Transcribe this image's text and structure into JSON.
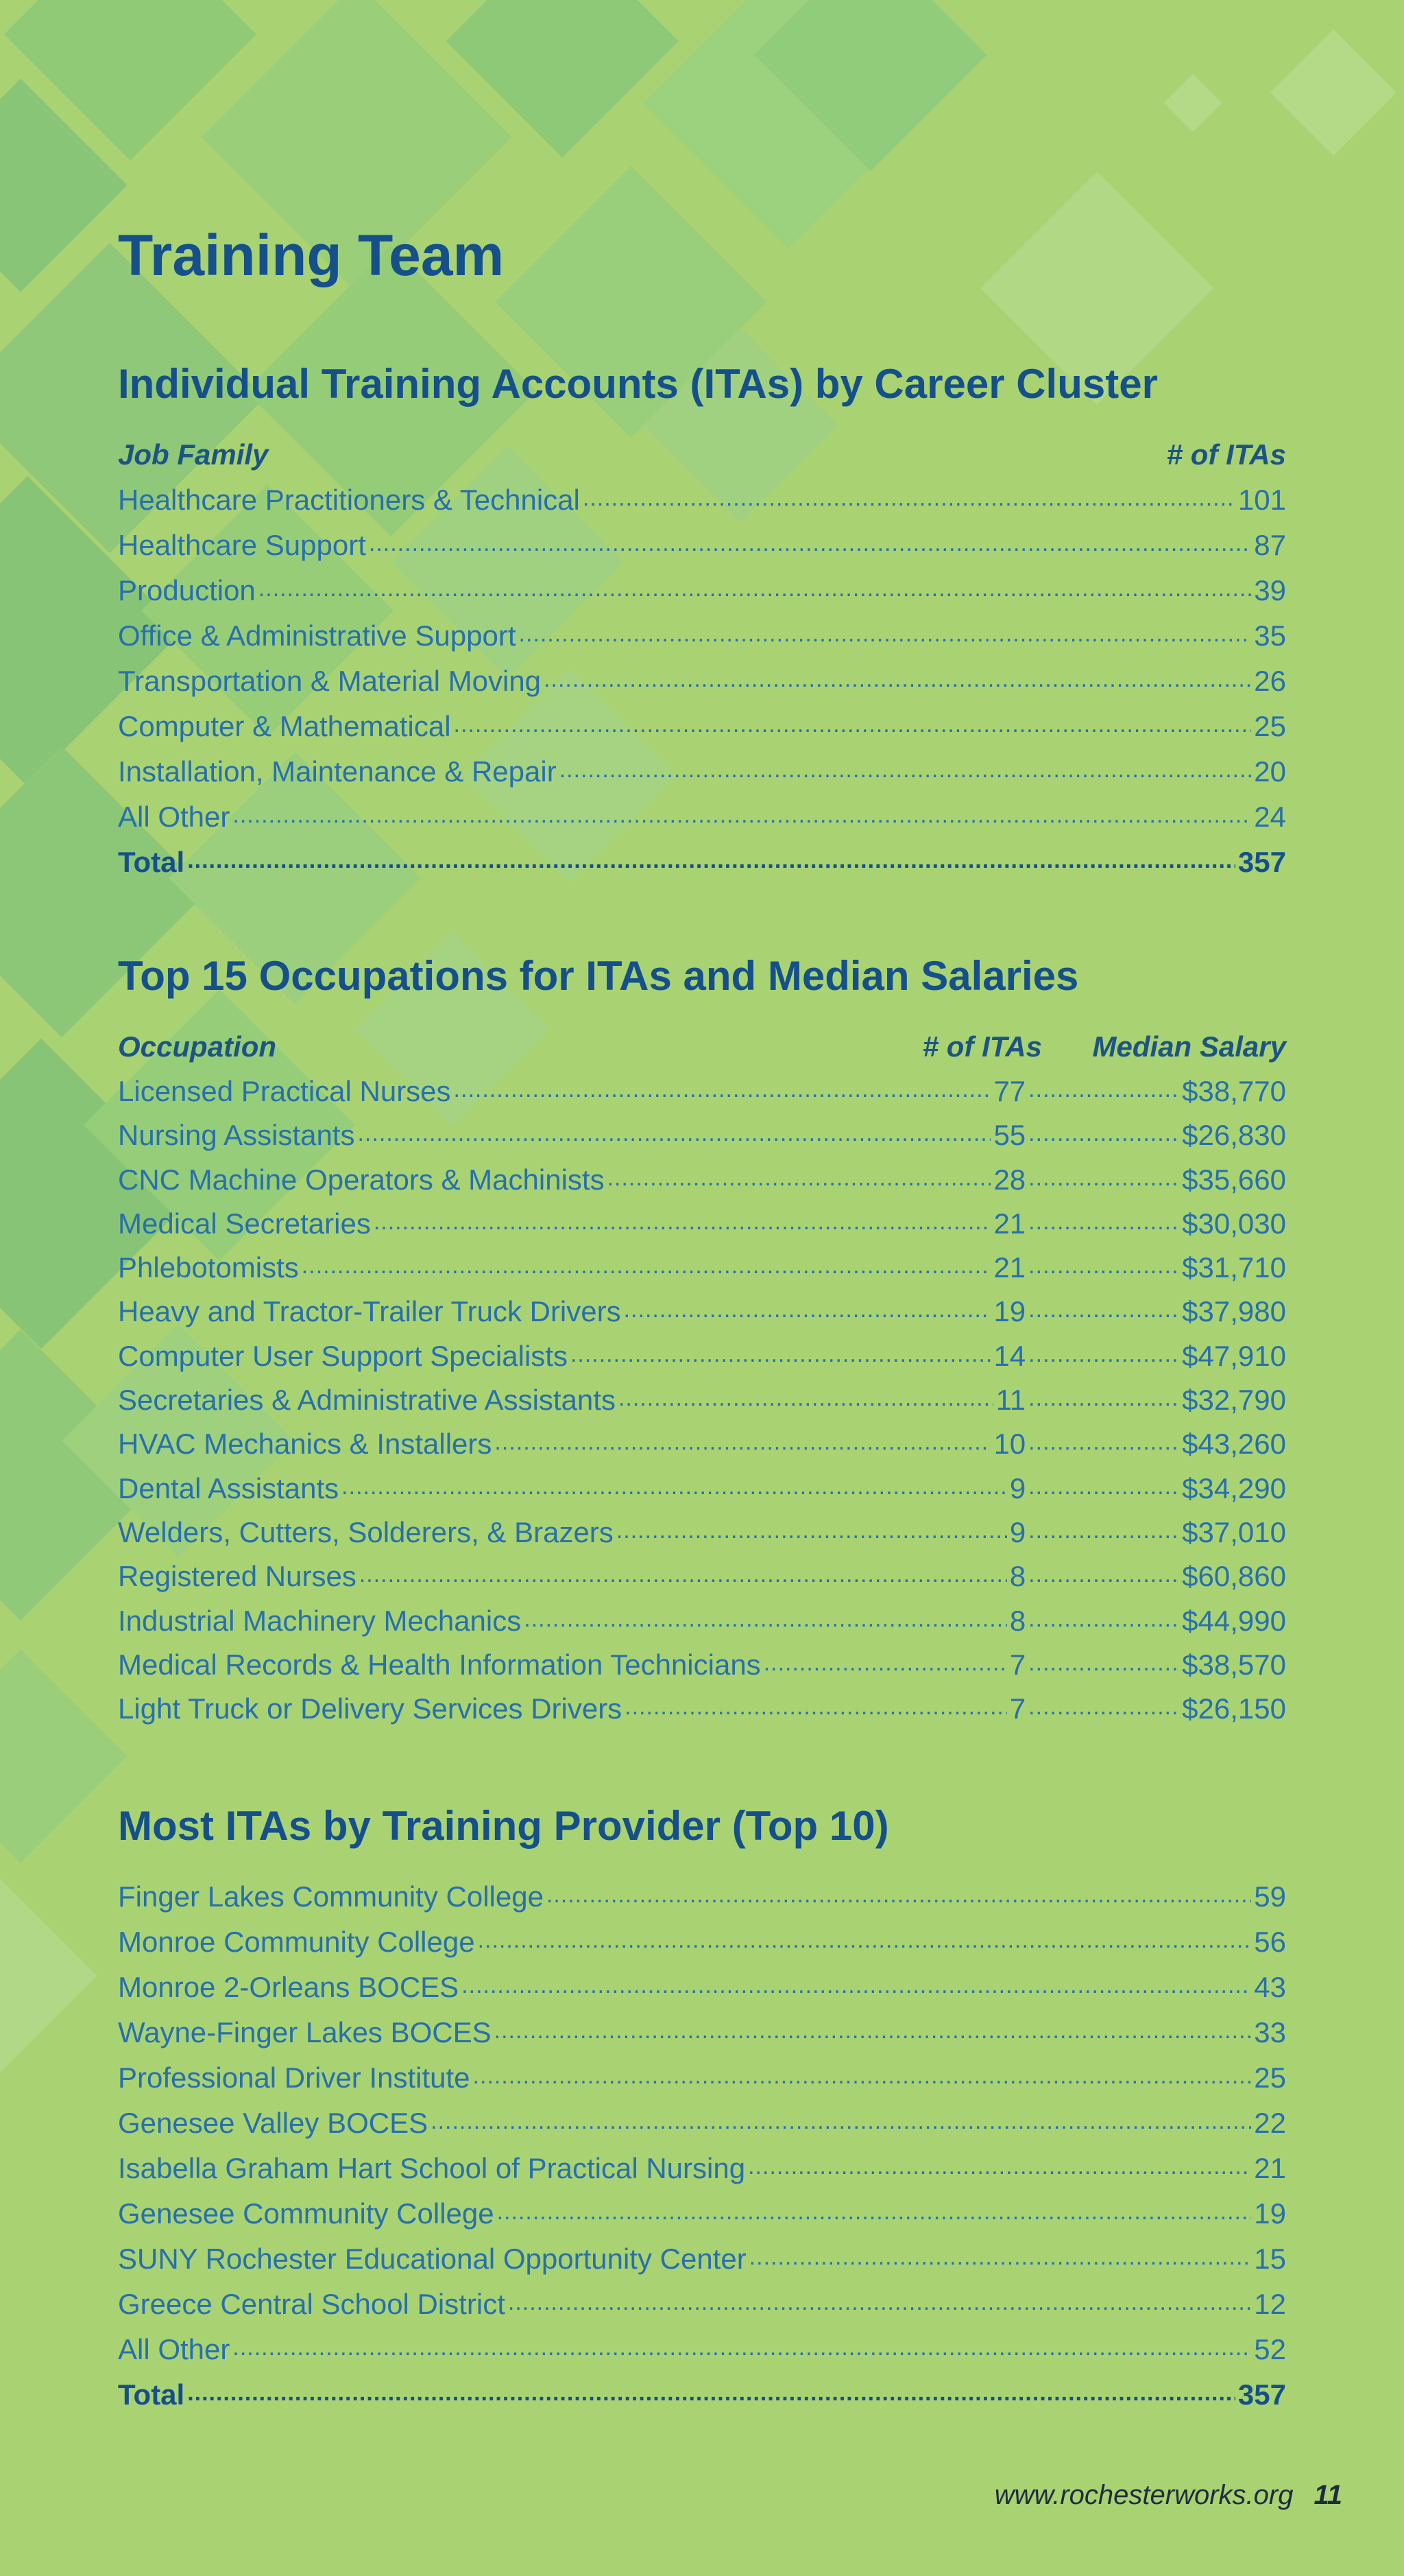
{
  "page_title": "Training Team",
  "career_cluster": {
    "title": "Individual Training Accounts (ITAs) by Career Cluster",
    "header_left": "Job Family",
    "header_right": "# of ITAs",
    "rows": [
      {
        "label": "Healthcare Practitioners & Technical",
        "value": "101"
      },
      {
        "label": "Healthcare Support",
        "value": "87"
      },
      {
        "label": "Production",
        "value": "39"
      },
      {
        "label": "Office & Administrative Support",
        "value": "35"
      },
      {
        "label": "Transportation & Material Moving",
        "value": "26"
      },
      {
        "label": "Computer & Mathematical",
        "value": "25"
      },
      {
        "label": "Installation, Maintenance & Repair",
        "value": "20"
      },
      {
        "label": "All Other",
        "value": "24"
      }
    ],
    "total_label": "Total",
    "total_value": "357"
  },
  "occupations": {
    "title": "Top 15 Occupations for ITAs and Median Salaries",
    "header_occupation": "Occupation",
    "header_itas": "# of ITAs",
    "header_salary": "Median Salary",
    "rows": [
      {
        "label": "Licensed Practical Nurses",
        "itas": "77",
        "salary": "$38,770"
      },
      {
        "label": "Nursing Assistants",
        "itas": "55",
        "salary": "$26,830"
      },
      {
        "label": "CNC Machine Operators & Machinists",
        "itas": "28",
        "salary": "$35,660"
      },
      {
        "label": "Medical Secretaries",
        "itas": "21",
        "salary": "$30,030"
      },
      {
        "label": "Phlebotomists",
        "itas": "21",
        "salary": "$31,710"
      },
      {
        "label": "Heavy and Tractor-Trailer Truck Drivers",
        "itas": "19",
        "salary": "$37,980"
      },
      {
        "label": "Computer User Support Specialists",
        "itas": "14",
        "salary": "$47,910"
      },
      {
        "label": "Secretaries & Administrative Assistants",
        "itas": "11",
        "salary": "$32,790"
      },
      {
        "label": "HVAC Mechanics & Installers",
        "itas": "10",
        "salary": "$43,260"
      },
      {
        "label": "Dental Assistants",
        "itas": "9",
        "salary": "$34,290"
      },
      {
        "label": "Welders, Cutters, Solderers, & Brazers",
        "itas": "9",
        "salary": "$37,010"
      },
      {
        "label": "Registered Nurses",
        "itas": "8",
        "salary": "$60,860"
      },
      {
        "label": "Industrial Machinery Mechanics",
        "itas": "8",
        "salary": "$44,990"
      },
      {
        "label": "Medical Records & Health Information Technicians",
        "itas": "7",
        "salary": "$38,570"
      },
      {
        "label": "Light Truck or Delivery Services Drivers",
        "itas": "7",
        "salary": "$26,150"
      }
    ]
  },
  "providers": {
    "title": "Most ITAs by Training Provider (Top 10)",
    "rows": [
      {
        "label": "Finger Lakes Community College",
        "value": "59"
      },
      {
        "label": "Monroe Community College",
        "value": "56"
      },
      {
        "label": "Monroe 2-Orleans BOCES",
        "value": "43"
      },
      {
        "label": "Wayne-Finger Lakes BOCES",
        "value": "33"
      },
      {
        "label": "Professional Driver Institute",
        "value": "25"
      },
      {
        "label": "Genesee Valley BOCES",
        "value": "22"
      },
      {
        "label": "Isabella Graham Hart School of Practical Nursing",
        "value": "21"
      },
      {
        "label": "Genesee Community College",
        "value": "19"
      },
      {
        "label": "SUNY Rochester Educational Opportunity Center",
        "value": "15"
      },
      {
        "label": "Greece Central School District",
        "value": "12"
      },
      {
        "label": "All Other",
        "value": "52"
      }
    ],
    "total_label": "Total",
    "total_value": "357"
  },
  "footer": {
    "url": "www.rochesterworks.org",
    "page_number": "11"
  }
}
